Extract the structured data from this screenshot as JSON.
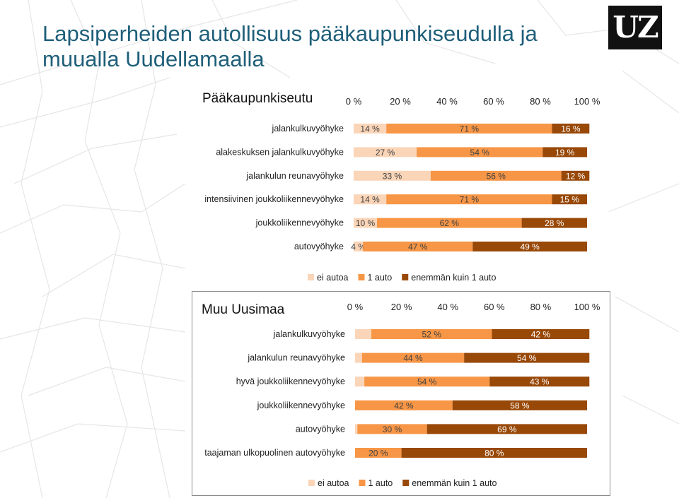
{
  "header": {
    "title": "Lapsiperheiden autollisuus pääkaupunkiseudulla ja muualla Uudellamaalla",
    "logo_text": "UZ"
  },
  "colors": {
    "ei_autoa": "#fbd5b8",
    "yksi_auto": "#f79646",
    "enemman": "#984807",
    "title": "#1f5f7a"
  },
  "chart_data": [
    {
      "type": "bar",
      "stacked": true,
      "orientation": "horizontal",
      "title": "Pääkaupunkiseutu",
      "xlim": [
        0,
        100
      ],
      "x_ticks": [
        "0 %",
        "20 %",
        "40 %",
        "60 %",
        "80 %",
        "100 %"
      ],
      "legend_position": "bottom",
      "categories": [
        "jalankulkuvyöhyke",
        "alakeskuksen jalankulkuvyöhyke",
        "jalankulun reunavyöhyke",
        "intensiivinen joukkoliikennevyöhyke",
        "joukkoliikennevyöhyke",
        "autovyöhyke"
      ],
      "series": [
        {
          "name": "ei autoa",
          "values": [
            14,
            27,
            33,
            14,
            10,
            4
          ],
          "labels": [
            "14 %",
            "27 %",
            "33 %",
            "14 %",
            "10 %",
            "4 %"
          ]
        },
        {
          "name": "1 auto",
          "values": [
            71,
            54,
            56,
            71,
            62,
            47
          ],
          "labels": [
            "71 %",
            "54 %",
            "56 %",
            "71 %",
            "62 %",
            "47 %"
          ]
        },
        {
          "name": "enemmän kuin 1 auto",
          "values": [
            16,
            19,
            12,
            15,
            28,
            49
          ],
          "labels": [
            "16 %",
            "19 %",
            "12 %",
            "15 %",
            "28 %",
            "49 %"
          ]
        }
      ]
    },
    {
      "type": "bar",
      "stacked": true,
      "orientation": "horizontal",
      "title": "Muu Uusimaa",
      "xlim": [
        0,
        100
      ],
      "x_ticks": [
        "0 %",
        "20 %",
        "40 %",
        "60 %",
        "80 %",
        "100 %"
      ],
      "legend_position": "bottom",
      "categories": [
        "jalankulkuvyöhyke",
        "jalankulun reunavyöhyke",
        "hyvä joukkoliikennevyöhyke",
        "joukkoliikennevyöhyke",
        "autovyöhyke",
        "taajaman ulkopuolinen autovyöhyke"
      ],
      "series": [
        {
          "name": "ei autoa",
          "values": [
            7,
            3,
            4,
            0,
            1,
            0
          ],
          "labels": [
            "",
            "",
            "",
            "",
            "",
            ""
          ]
        },
        {
          "name": "1 auto",
          "values": [
            52,
            44,
            54,
            42,
            30,
            20
          ],
          "labels": [
            "52 %",
            "44 %",
            "54 %",
            "42 %",
            "30 %",
            "20 %"
          ]
        },
        {
          "name": "enemmän kuin 1 auto",
          "values": [
            42,
            54,
            43,
            58,
            69,
            80
          ],
          "labels": [
            "42 %",
            "54 %",
            "43 %",
            "58 %",
            "69 %",
            "80 %"
          ]
        }
      ]
    }
  ]
}
